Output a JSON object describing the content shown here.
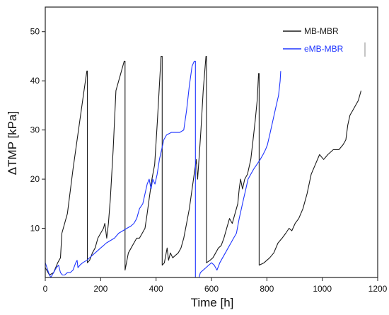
{
  "chart_data": {
    "type": "line",
    "xlabel": "Time [h]",
    "ylabel": "ΔTMP [kPa]",
    "xlim": [
      0,
      1200
    ],
    "ylim": [
      0,
      55
    ],
    "xticks": [
      0,
      200,
      400,
      600,
      800,
      1000,
      1200
    ],
    "yticks": [
      10,
      20,
      30,
      40,
      50
    ],
    "grid": false,
    "legend_position": "top-right",
    "series": [
      {
        "name": "MB-MBR",
        "color": "#1a1a1a",
        "points": [
          [
            0,
            2
          ],
          [
            15,
            0.5
          ],
          [
            30,
            1
          ],
          [
            45,
            3
          ],
          [
            55,
            4
          ],
          [
            60,
            9
          ],
          [
            70,
            11
          ],
          [
            80,
            13
          ],
          [
            100,
            22
          ],
          [
            120,
            30
          ],
          [
            140,
            38
          ],
          [
            150,
            42
          ],
          [
            152,
            42
          ],
          [
            152,
            3
          ],
          [
            160,
            3.5
          ],
          [
            170,
            5
          ],
          [
            180,
            6
          ],
          [
            190,
            8
          ],
          [
            200,
            9
          ],
          [
            210,
            10
          ],
          [
            215,
            11
          ],
          [
            222,
            8
          ],
          [
            228,
            11
          ],
          [
            235,
            16
          ],
          [
            245,
            26
          ],
          [
            255,
            38
          ],
          [
            270,
            41
          ],
          [
            285,
            44
          ],
          [
            288,
            44
          ],
          [
            288,
            1.5
          ],
          [
            300,
            5
          ],
          [
            310,
            6
          ],
          [
            320,
            7
          ],
          [
            330,
            8
          ],
          [
            340,
            8
          ],
          [
            350,
            9
          ],
          [
            360,
            10
          ],
          [
            368,
            13
          ],
          [
            375,
            16
          ],
          [
            385,
            20
          ],
          [
            395,
            23
          ],
          [
            405,
            32
          ],
          [
            418,
            45
          ],
          [
            422,
            45
          ],
          [
            422,
            2.5
          ],
          [
            430,
            3
          ],
          [
            440,
            6
          ],
          [
            445,
            3.5
          ],
          [
            452,
            5
          ],
          [
            460,
            4
          ],
          [
            470,
            4.5
          ],
          [
            480,
            5
          ],
          [
            490,
            6
          ],
          [
            500,
            8
          ],
          [
            510,
            11
          ],
          [
            520,
            14
          ],
          [
            530,
            18
          ],
          [
            540,
            22
          ],
          [
            545,
            24
          ],
          [
            550,
            20
          ],
          [
            556,
            25
          ],
          [
            562,
            30
          ],
          [
            570,
            38
          ],
          [
            580,
            45
          ],
          [
            582,
            45
          ],
          [
            582,
            3
          ],
          [
            595,
            3.5
          ],
          [
            605,
            4
          ],
          [
            615,
            5
          ],
          [
            625,
            6
          ],
          [
            635,
            6.5
          ],
          [
            645,
            8
          ],
          [
            655,
            10
          ],
          [
            665,
            12
          ],
          [
            675,
            11
          ],
          [
            685,
            13
          ],
          [
            695,
            15
          ],
          [
            700,
            18
          ],
          [
            705,
            20
          ],
          [
            712,
            18
          ],
          [
            720,
            20
          ],
          [
            730,
            21
          ],
          [
            742,
            24
          ],
          [
            750,
            28
          ],
          [
            758,
            32
          ],
          [
            765,
            36
          ],
          [
            770,
            41.5
          ],
          [
            772,
            41.5
          ],
          [
            772,
            2.5
          ],
          [
            790,
            3
          ],
          [
            800,
            3.5
          ],
          [
            810,
            4
          ],
          [
            825,
            5
          ],
          [
            840,
            7
          ],
          [
            855,
            8
          ],
          [
            868,
            9
          ],
          [
            880,
            10
          ],
          [
            890,
            9.5
          ],
          [
            902,
            11
          ],
          [
            915,
            12
          ],
          [
            930,
            14
          ],
          [
            945,
            17
          ],
          [
            960,
            21
          ],
          [
            975,
            23
          ],
          [
            990,
            25
          ],
          [
            1005,
            24
          ],
          [
            1020,
            25
          ],
          [
            1040,
            26
          ],
          [
            1060,
            26
          ],
          [
            1075,
            27
          ],
          [
            1085,
            28
          ],
          [
            1092,
            31
          ],
          [
            1100,
            33
          ],
          [
            1110,
            34
          ],
          [
            1120,
            35
          ],
          [
            1130,
            36
          ],
          [
            1140,
            38
          ]
        ]
      },
      {
        "name": "eMB-MBR",
        "color": "#1f35ff",
        "points": [
          [
            0,
            3
          ],
          [
            12,
            1
          ],
          [
            20,
            0
          ],
          [
            30,
            1
          ],
          [
            40,
            2
          ],
          [
            48,
            2.5
          ],
          [
            55,
            1
          ],
          [
            62,
            0.5
          ],
          [
            70,
            0.5
          ],
          [
            80,
            1
          ],
          [
            90,
            1
          ],
          [
            100,
            1.5
          ],
          [
            110,
            3
          ],
          [
            115,
            3.5
          ],
          [
            118,
            2
          ],
          [
            125,
            2.5
          ],
          [
            135,
            3
          ],
          [
            150,
            3.5
          ],
          [
            160,
            4
          ],
          [
            170,
            4.5
          ],
          [
            180,
            5
          ],
          [
            190,
            5.5
          ],
          [
            200,
            6
          ],
          [
            210,
            6.5
          ],
          [
            220,
            7
          ],
          [
            235,
            7.5
          ],
          [
            250,
            8
          ],
          [
            265,
            9
          ],
          [
            280,
            9.5
          ],
          [
            295,
            10
          ],
          [
            310,
            10.5
          ],
          [
            320,
            11
          ],
          [
            330,
            12
          ],
          [
            340,
            14
          ],
          [
            352,
            15
          ],
          [
            360,
            17
          ],
          [
            368,
            19
          ],
          [
            375,
            20
          ],
          [
            382,
            18
          ],
          [
            388,
            20
          ],
          [
            396,
            19
          ],
          [
            404,
            21
          ],
          [
            412,
            24
          ],
          [
            420,
            26
          ],
          [
            428,
            28
          ],
          [
            438,
            29
          ],
          [
            455,
            29.5
          ],
          [
            470,
            29.5
          ],
          [
            485,
            29.5
          ],
          [
            500,
            30
          ],
          [
            510,
            34
          ],
          [
            520,
            39
          ],
          [
            530,
            43
          ],
          [
            538,
            44
          ],
          [
            542,
            44
          ],
          [
            542,
            0
          ],
          [
            550,
            0
          ],
          [
            555,
            0
          ],
          [
            560,
            1
          ],
          [
            570,
            1.5
          ],
          [
            580,
            2
          ],
          [
            590,
            2.5
          ],
          [
            600,
            3
          ],
          [
            610,
            2.5
          ],
          [
            620,
            1.5
          ],
          [
            630,
            3
          ],
          [
            640,
            4
          ],
          [
            650,
            5
          ],
          [
            660,
            6
          ],
          [
            670,
            7
          ],
          [
            680,
            8
          ],
          [
            690,
            9
          ],
          [
            700,
            12
          ],
          [
            708,
            14
          ],
          [
            716,
            16
          ],
          [
            724,
            18
          ],
          [
            732,
            20
          ],
          [
            742,
            21
          ],
          [
            752,
            22
          ],
          [
            764,
            23
          ],
          [
            776,
            24
          ],
          [
            786,
            25
          ],
          [
            795,
            26
          ],
          [
            802,
            27
          ],
          [
            810,
            29
          ],
          [
            818,
            31
          ],
          [
            826,
            33
          ],
          [
            834,
            35
          ],
          [
            842,
            37
          ],
          [
            848,
            40
          ],
          [
            850,
            42
          ]
        ]
      }
    ]
  }
}
